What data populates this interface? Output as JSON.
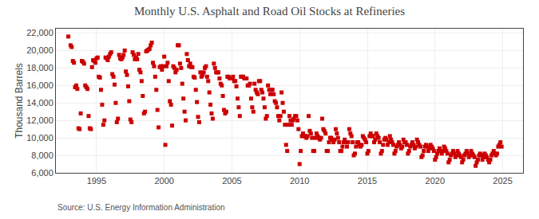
{
  "chart_data": {
    "type": "scatter",
    "title": "Monthly U.S. Asphalt and Road Oil Stocks at Refineries",
    "ylabel": "Thousand Barrels",
    "annotations": [
      "Source: U.S. Energy Information Administration"
    ],
    "color": "#cc0000",
    "marker": "square",
    "grid": true,
    "xlim": [
      1992.0,
      2026.5
    ],
    "ylim": [
      6000,
      22500
    ],
    "xticks": [
      1995,
      2000,
      2005,
      2010,
      2015,
      2020,
      2025
    ],
    "yticks": [
      {
        "value": 6000,
        "label": "6,000"
      },
      {
        "value": 8000,
        "label": "8,000"
      },
      {
        "value": 10000,
        "label": "10,000"
      },
      {
        "value": 12000,
        "label": "12,000"
      },
      {
        "value": 14000,
        "label": "14,000"
      },
      {
        "value": 16000,
        "label": "16,000"
      },
      {
        "value": 18000,
        "label": "18,000"
      },
      {
        "value": 20000,
        "label": "20,000"
      },
      {
        "value": 22000,
        "label": "22,000"
      }
    ],
    "x": [
      1992.917,
      1993.083,
      1993.167,
      1993.25,
      1993.333,
      1993.417,
      1993.5,
      1993.583,
      1993.667,
      1993.75,
      1993.833,
      1993.917,
      1994.0,
      1994.083,
      1994.167,
      1994.25,
      1994.333,
      1994.417,
      1994.5,
      1994.583,
      1994.667,
      1994.75,
      1994.833,
      1994.917,
      1995.0,
      1995.083,
      1995.167,
      1995.25,
      1995.333,
      1995.417,
      1995.5,
      1995.583,
      1995.667,
      1995.75,
      1995.833,
      1995.917,
      1996.0,
      1996.083,
      1996.167,
      1996.25,
      1996.333,
      1996.417,
      1996.5,
      1996.583,
      1996.667,
      1996.75,
      1996.833,
      1996.917,
      1997.0,
      1997.083,
      1997.167,
      1997.25,
      1997.333,
      1997.417,
      1997.5,
      1997.583,
      1997.667,
      1997.75,
      1997.833,
      1997.917,
      1998.0,
      1998.083,
      1998.167,
      1998.25,
      1998.333,
      1998.417,
      1998.5,
      1998.583,
      1998.667,
      1998.75,
      1998.833,
      1998.917,
      1999.0,
      1999.083,
      1999.167,
      1999.25,
      1999.333,
      1999.417,
      1999.5,
      1999.583,
      1999.667,
      1999.75,
      1999.833,
      1999.917,
      2000.0,
      2000.083,
      2000.167,
      2000.25,
      2000.333,
      2000.417,
      2000.5,
      2000.583,
      2000.667,
      2000.75,
      2000.833,
      2000.917,
      2001.0,
      2001.083,
      2001.167,
      2001.25,
      2001.333,
      2001.417,
      2001.5,
      2001.583,
      2001.667,
      2001.75,
      2001.833,
      2001.917,
      2002.0,
      2002.083,
      2002.167,
      2002.25,
      2002.333,
      2002.417,
      2002.5,
      2002.583,
      2002.667,
      2002.75,
      2002.833,
      2002.917,
      2003.0,
      2003.083,
      2003.167,
      2003.25,
      2003.333,
      2003.417,
      2003.5,
      2003.583,
      2003.667,
      2003.75,
      2003.833,
      2003.917,
      2004.0,
      2004.083,
      2004.167,
      2004.25,
      2004.333,
      2004.417,
      2004.5,
      2004.583,
      2004.667,
      2004.75,
      2004.833,
      2004.917,
      2005.0,
      2005.083,
      2005.167,
      2005.25,
      2005.333,
      2005.417,
      2005.5,
      2005.583,
      2005.667,
      2005.75,
      2005.833,
      2005.917,
      2006.0,
      2006.083,
      2006.167,
      2006.25,
      2006.333,
      2006.417,
      2006.5,
      2006.583,
      2006.667,
      2006.75,
      2006.833,
      2006.917,
      2007.0,
      2007.083,
      2007.167,
      2007.25,
      2007.333,
      2007.417,
      2007.5,
      2007.583,
      2007.667,
      2007.75,
      2007.833,
      2007.917,
      2008.0,
      2008.083,
      2008.167,
      2008.25,
      2008.333,
      2008.417,
      2008.5,
      2008.583,
      2008.667,
      2008.75,
      2008.833,
      2008.917,
      2009.0,
      2009.083,
      2009.167,
      2009.25,
      2009.333,
      2009.417,
      2009.5,
      2009.583,
      2009.667,
      2009.75,
      2009.833,
      2009.917,
      2010.0,
      2010.083,
      2010.167,
      2010.25,
      2010.333,
      2010.417,
      2010.5,
      2010.583,
      2010.667,
      2010.75,
      2010.833,
      2010.917,
      2011.0,
      2011.083,
      2011.167,
      2011.25,
      2011.333,
      2011.417,
      2011.5,
      2011.583,
      2011.667,
      2011.75,
      2011.833,
      2011.917,
      2012.0,
      2012.083,
      2012.167,
      2012.25,
      2012.333,
      2012.417,
      2012.5,
      2012.583,
      2012.667,
      2012.75,
      2012.833,
      2012.917,
      2013.0,
      2013.083,
      2013.167,
      2013.25,
      2013.333,
      2013.417,
      2013.5,
      2013.583,
      2013.667,
      2013.75,
      2013.833,
      2013.917,
      2014.0,
      2014.083,
      2014.167,
      2014.25,
      2014.333,
      2014.417,
      2014.5,
      2014.583,
      2014.667,
      2014.75,
      2014.833,
      2014.917,
      2015.0,
      2015.083,
      2015.167,
      2015.25,
      2015.333,
      2015.417,
      2015.5,
      2015.583,
      2015.667,
      2015.75,
      2015.833,
      2015.917,
      2016.0,
      2016.083,
      2016.167,
      2016.25,
      2016.333,
      2016.417,
      2016.5,
      2016.583,
      2016.667,
      2016.75,
      2016.833,
      2016.917,
      2017.0,
      2017.083,
      2017.167,
      2017.25,
      2017.333,
      2017.417,
      2017.5,
      2017.583,
      2017.667,
      2017.75,
      2017.833,
      2017.917,
      2018.0,
      2018.083,
      2018.167,
      2018.25,
      2018.333,
      2018.417,
      2018.5,
      2018.583,
      2018.667,
      2018.75,
      2018.833,
      2018.917,
      2019.0,
      2019.083,
      2019.167,
      2019.25,
      2019.333,
      2019.417,
      2019.5,
      2019.583,
      2019.667,
      2019.75,
      2019.833,
      2019.917,
      2020.0,
      2020.083,
      2020.167,
      2020.25,
      2020.333,
      2020.417,
      2020.5,
      2020.583,
      2020.667,
      2020.75,
      2020.833,
      2020.917,
      2021.0,
      2021.083,
      2021.167,
      2021.25,
      2021.333,
      2021.417,
      2021.5,
      2021.583,
      2021.667,
      2021.75,
      2021.833,
      2021.917,
      2022.0,
      2022.083,
      2022.167,
      2022.25,
      2022.333,
      2022.417,
      2022.5,
      2022.583,
      2022.667,
      2022.75,
      2022.833,
      2022.917,
      2023.0,
      2023.083,
      2023.167,
      2023.25,
      2023.333,
      2023.417,
      2023.5,
      2023.583,
      2023.667,
      2023.75,
      2023.833,
      2023.917,
      2024.0,
      2024.083,
      2024.167,
      2024.25,
      2024.333,
      2024.417,
      2024.5,
      2024.583,
      2024.667,
      2024.75,
      2024.833,
      2024.917
    ],
    "values": [
      21600,
      20600,
      20400,
      18800,
      18600,
      15800,
      16000,
      15600,
      11100,
      11000,
      12800,
      18800,
      18700,
      18500,
      16000,
      15800,
      15600,
      12500,
      11100,
      11000,
      18100,
      18900,
      18800,
      18600,
      19100,
      19200,
      17000,
      16900,
      15500,
      13800,
      11500,
      12000,
      19200,
      19100,
      18900,
      19300,
      19600,
      19800,
      17300,
      17000,
      16100,
      14000,
      11800,
      12200,
      19500,
      19100,
      19000,
      19200,
      19500,
      20000,
      17600,
      17200,
      15900,
      14200,
      12100,
      11800,
      19800,
      19500,
      19000,
      19200,
      19000,
      19600,
      17800,
      17500,
      16500,
      14800,
      12800,
      13000,
      19900,
      20000,
      20100,
      20200,
      20600,
      20900,
      18600,
      18200,
      17000,
      15500,
      13200,
      11200,
      18100,
      18200,
      17800,
      18200,
      19300,
      9200,
      18200,
      18600,
      16500,
      14200,
      13800,
      11400,
      18200,
      18000,
      17500,
      17800,
      20600,
      20600,
      18500,
      18000,
      16200,
      14500,
      13000,
      12000,
      19600,
      18900,
      18200,
      18500,
      18100,
      18100,
      17000,
      16900,
      15500,
      14100,
      12400,
      11800,
      17500,
      17000,
      17200,
      17500,
      18000,
      18200,
      17000,
      16500,
      15200,
      13800,
      12800,
      12200,
      18500,
      18000,
      17500,
      17500,
      17500,
      16800,
      16200,
      16000,
      14800,
      13200,
      12800,
      13000,
      17000,
      17000,
      16800,
      16800,
      16800,
      17000,
      16500,
      16500,
      15900,
      14500,
      13500,
      12500,
      17000,
      17000,
      17000,
      16800,
      16800,
      16800,
      16000,
      16000,
      16200,
      14500,
      13500,
      13000,
      16200,
      15500,
      15200,
      15000,
      16500,
      16500,
      15500,
      15200,
      14500,
      13500,
      12200,
      12500,
      16000,
      15500,
      15000,
      15500,
      15500,
      15000,
      14200,
      14000,
      13500,
      12500,
      12000,
      12500,
      15200,
      14000,
      13000,
      11500,
      9200,
      8500,
      11500,
      12500,
      12000,
      11500,
      12000,
      12200,
      12500,
      12500,
      12000,
      11000,
      7000,
      8500,
      10200,
      10500,
      10200,
      10200,
      10000,
      10200,
      12500,
      10800,
      10500,
      10000,
      8500,
      8500,
      10000,
      10500,
      10200,
      10000,
      9800,
      10000,
      12200,
      11000,
      10800,
      10500,
      8500,
      8500,
      9500,
      10000,
      10000,
      9800,
      9500,
      9800,
      11000,
      10500,
      10000,
      9500,
      8500,
      8500,
      9000,
      9500,
      9800,
      9500,
      9000,
      9500,
      11000,
      10500,
      10200,
      9500,
      8000,
      8200,
      9000,
      9500,
      9500,
      9200,
      9000,
      9200,
      10200,
      10000,
      9800,
      9500,
      8200,
      8500,
      10200,
      10500,
      10200,
      10200,
      9500,
      9800,
      10500,
      10200,
      10000,
      9500,
      8200,
      8500,
      9200,
      9800,
      10000,
      9800,
      9200,
      9500,
      10200,
      9800,
      9500,
      9200,
      8200,
      8500,
      9000,
      9200,
      9500,
      9200,
      8800,
      9000,
      9800,
      9500,
      9500,
      9200,
      8200,
      8500,
      9000,
      9200,
      9500,
      9200,
      8800,
      9000,
      9800,
      9500,
      9200,
      9000,
      7800,
      8000,
      8500,
      9000,
      9200,
      9000,
      8500,
      8800,
      9200,
      9000,
      8800,
      8500,
      7500,
      7800,
      8200,
      8500,
      8800,
      8500,
      8200,
      8500,
      9000,
      8800,
      8500,
      8200,
      7200,
      7500,
      8000,
      8200,
      8500,
      8200,
      7800,
      8000,
      8500,
      8200,
      8000,
      7800,
      7200,
      7500,
      8000,
      8200,
      8500,
      8200,
      7800,
      8000,
      8500,
      8200,
      8000,
      7800,
      6800,
      7200,
      7500,
      8000,
      8200,
      8000,
      7500,
      7800,
      8200,
      8000,
      7800,
      7500,
      7200,
      7500,
      8000,
      8200,
      8500,
      8200,
      8000,
      8200,
      9000,
      9200,
      9500,
      9000
    ]
  }
}
